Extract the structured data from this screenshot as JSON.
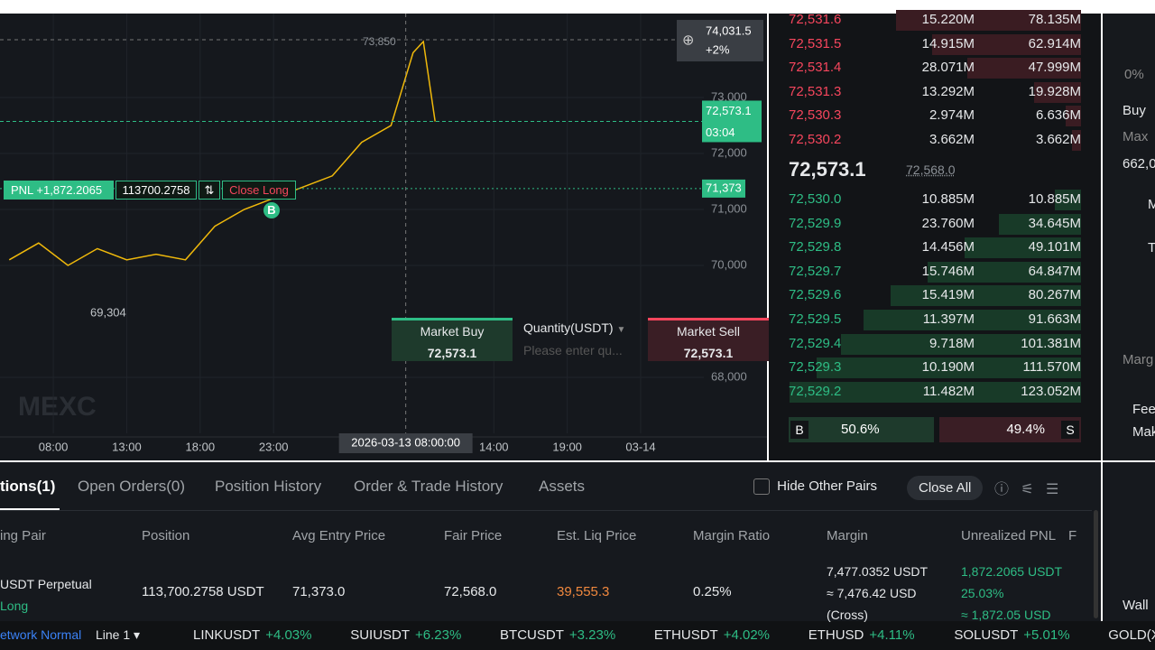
{
  "chart_data": {
    "type": "line",
    "x": [
      -3,
      -1,
      1,
      3,
      5,
      7,
      9,
      11,
      13,
      15,
      17,
      19,
      21,
      23,
      24.5,
      25.2,
      26
    ],
    "series": [
      {
        "color": "#f0b90b",
        "values": [
          70100,
          70400,
          70000,
          70300,
          70100,
          70200,
          70100,
          70700,
          71000,
          71200,
          71400,
          71600,
          72200,
          72500,
          73800,
          74000,
          72573.1
        ]
      }
    ],
    "xlim": [
      -3.63,
      44.3
    ],
    "ylim": [
      67000,
      74500
    ],
    "xticks": [
      {
        "value": 0,
        "label": "08:00"
      },
      {
        "value": 5,
        "label": "13:00"
      },
      {
        "value": 10,
        "label": "18:00"
      },
      {
        "value": 15,
        "label": "23:00"
      },
      {
        "value": 30,
        "label": "14:00"
      },
      {
        "value": 35,
        "label": "19:00"
      },
      {
        "value": 40,
        "label": "03-14"
      }
    ],
    "yticks": [
      {
        "value": 68000,
        "label": "68,000"
      },
      {
        "value": 70000,
        "label": "70,000"
      },
      {
        "value": 71000,
        "label": "71,000"
      },
      {
        "value": 72000,
        "label": "72,000"
      },
      {
        "value": 73000,
        "label": "73,000"
      }
    ],
    "grid": true,
    "annotations": [
      "73,850",
      "69,304"
    ],
    "crosshair": {
      "x": 24,
      "x_label": "2026-03-13 08:00:00",
      "y": 74031.5,
      "y_label": "74,031.5",
      "change": "+2%"
    },
    "current_price": {
      "value": 72573.1,
      "label": "72,573.1",
      "countdown": "03:04"
    },
    "entry_price": {
      "value": 71373,
      "label": "71,373"
    },
    "watermark": "MEXC"
  },
  "position_line": {
    "pnl": "PNL +1,872.2065",
    "size": "113700.2758",
    "close": "Close Long",
    "marker": "B"
  },
  "quick_order": {
    "buy": "Market Buy",
    "buy_price": "72,573.1",
    "qty": "Quantity(USDT)",
    "placeholder": "Please enter qu...",
    "sell": "Market Sell",
    "sell_price": "72,573.1"
  },
  "order_book": {
    "asks": [
      [
        "72,531.6",
        "15.220M",
        "78.135M"
      ],
      [
        "72,531.5",
        "14.915M",
        "62.914M"
      ],
      [
        "72,531.4",
        "28.071M",
        "47.999M"
      ],
      [
        "72,531.3",
        "13.292M",
        "19.928M"
      ],
      [
        "72,530.3",
        "2.974M",
        "6.636M"
      ],
      [
        "72,530.2",
        "3.662M",
        "3.662M"
      ]
    ],
    "last": "72,573.1",
    "fair": "72,568.0",
    "bids": [
      [
        "72,530.0",
        "10.885M",
        "10.885M"
      ],
      [
        "72,529.9",
        "23.760M",
        "34.645M"
      ],
      [
        "72,529.8",
        "14.456M",
        "49.101M"
      ],
      [
        "72,529.7",
        "15.746M",
        "64.847M"
      ],
      [
        "72,529.6",
        "15.419M",
        "80.267M"
      ],
      [
        "72,529.5",
        "11.397M",
        "91.663M"
      ],
      [
        "72,529.4",
        "9.718M",
        "101.381M"
      ],
      [
        "72,529.3",
        "10.190M",
        "111.570M"
      ],
      [
        "72,529.2",
        "11.482M",
        "123.052M"
      ]
    ],
    "buy_tag": "B",
    "buy_ratio": 50.6,
    "buy_ratio_label": "50.6%",
    "sell_ratio": 49.4,
    "sell_ratio_label": "49.4%",
    "sell_tag": "S"
  },
  "side_panel": [
    "0%",
    "Buy",
    "Max",
    "662,0",
    "M",
    "T",
    "Marg",
    "Fee",
    "Mak",
    "Wall"
  ],
  "tabs": [
    "tions(1)",
    "Open Orders(0)",
    "Position History",
    "Order & Trade History",
    "Assets"
  ],
  "hide_other": "Hide Other Pairs",
  "close_all": "Close All",
  "table": {
    "headers": [
      "ing Pair",
      "Position",
      "Avg Entry Price",
      "Fair Price",
      "Est. Liq Price",
      "Margin Ratio",
      "Margin",
      "Unrealized PNL",
      "F"
    ],
    "row": {
      "pair": "USDT  Perpetual",
      "side": "Long",
      "position": "113,700.2758 USDT",
      "entry": "71,373.0",
      "fair": "72,568.0",
      "liq": "39,555.3",
      "ratio": "0.25%",
      "margin": "7,477.0352 USDT",
      "margin_usd": "≈ 7,476.42 USD",
      "mode": "(Cross)",
      "pnl": "1,872.2065 USDT",
      "pnl_pct": "25.03%",
      "pnl_usd": "≈ 1,872.05 USD"
    }
  },
  "ticker": {
    "network": "etwork Normal",
    "line": "Line 1",
    "items": [
      [
        "LINKUSDT",
        "+4.03%"
      ],
      [
        "SUIUSDT",
        "+6.23%"
      ],
      [
        "BTCUSDT",
        "+3.23%"
      ],
      [
        "ETHUSDT",
        "+4.02%"
      ],
      [
        "ETHUSD",
        "+4.11%"
      ],
      [
        "SOLUSDT",
        "+5.01%"
      ],
      [
        "GOLD(XAUT)",
        ""
      ]
    ]
  }
}
